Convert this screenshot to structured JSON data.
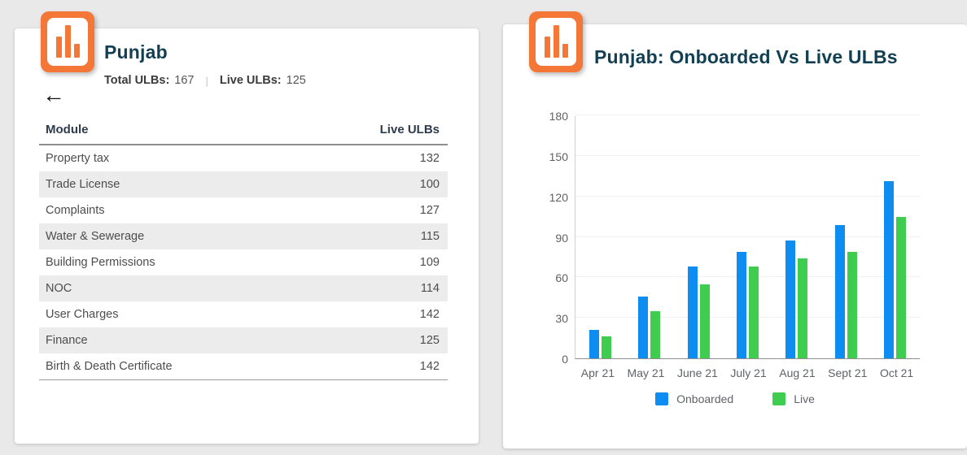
{
  "colors": {
    "brand_orange": "#F47738",
    "title_teal": "#123F51",
    "bar_blue": "#0D8DF2",
    "bar_green": "#3FCD50",
    "row_stripe": "#ececec",
    "page_background": "#e9e9e9"
  },
  "left_card": {
    "title": "Punjab",
    "stats": {
      "total_label": "Total ULBs:",
      "total_value": "167",
      "separator": "|",
      "live_label": "Live ULBs:",
      "live_value": "125"
    },
    "back_icon": "←",
    "table": {
      "columns": [
        "Module",
        "Live ULBs"
      ],
      "rows": [
        {
          "module": "Property tax",
          "live_ulbs": "132"
        },
        {
          "module": "Trade License",
          "live_ulbs": "100"
        },
        {
          "module": "Complaints",
          "live_ulbs": "127"
        },
        {
          "module": "Water & Sewerage",
          "live_ulbs": "115"
        },
        {
          "module": "Building Permissions",
          "live_ulbs": "109"
        },
        {
          "module": "NOC",
          "live_ulbs": "114"
        },
        {
          "module": "User Charges",
          "live_ulbs": "142"
        },
        {
          "module": "Finance",
          "live_ulbs": "125"
        },
        {
          "module": "Birth & Death Certificate",
          "live_ulbs": "142"
        }
      ]
    }
  },
  "chart_data": {
    "type": "bar",
    "title": "Punjab: Onboarded Vs Live ULBs",
    "categories": [
      "Apr 21",
      "May 21",
      "June 21",
      "July 21",
      "Aug 21",
      "Sept 21",
      "Oct 21"
    ],
    "series": [
      {
        "name": "Onboarded",
        "color": "#0D8DF2",
        "values": [
          21,
          46,
          68,
          79,
          87,
          99,
          131
        ]
      },
      {
        "name": "Live",
        "color": "#3FCD50",
        "values": [
          16,
          35,
          55,
          68,
          74,
          79,
          105
        ]
      }
    ],
    "xlabel": "",
    "ylabel": "",
    "ylim": [
      0,
      180
    ],
    "yticks": [
      0,
      30,
      60,
      90,
      120,
      150,
      180
    ],
    "grid": true,
    "legend_position": "bottom"
  }
}
